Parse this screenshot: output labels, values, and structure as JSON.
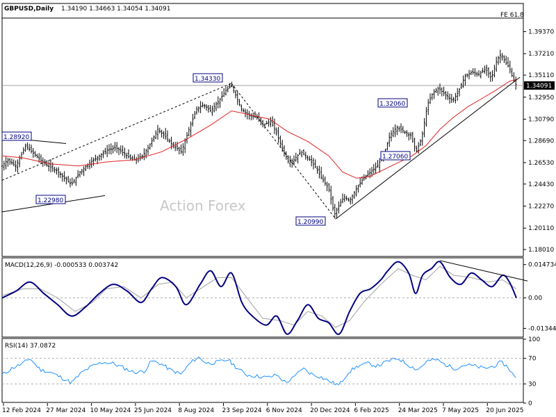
{
  "chart_data": [
    {
      "type": "candlestick",
      "panel": "price",
      "title": "GBPUSD,Daily",
      "ohlc_label": "1.34190 1.34663 1.34054 1.34091",
      "fib_label": "FE 61.8",
      "watermark": "Action Forex",
      "ylim": [
        1.174,
        1.407
      ],
      "y_ticks": [
        {
          "label": "1.39370",
          "value": 1.3937
        },
        {
          "label": "1.37210",
          "value": 1.3721
        },
        {
          "label": "1.35110",
          "value": 1.3511
        },
        {
          "label": "1.32950",
          "value": 1.3295
        },
        {
          "label": "1.30790",
          "value": 1.3079
        },
        {
          "label": "1.28690",
          "value": 1.2869
        },
        {
          "label": "1.26530",
          "value": 1.2653
        },
        {
          "label": "1.24430",
          "value": 1.2443
        },
        {
          "label": "1.22270",
          "value": 1.2227
        },
        {
          "label": "1.20110",
          "value": 1.2011
        },
        {
          "label": "1.18010",
          "value": 1.1801
        }
      ],
      "current_price": {
        "label": "1.34091",
        "value": 1.34091
      },
      "x_labels": [
        "12 Feb 2024",
        "27 Mar 2024",
        "10 May 2024",
        "25 Jun 2024",
        "8 Aug 2024",
        "23 Sep 2024",
        "6 Nov 2024",
        "20 Dec 2024",
        "6 Feb 2025",
        "24 Mar 2025",
        "7 May 2025",
        "20 Jun 2025"
      ],
      "pivot_labels": [
        {
          "label": "1.28920",
          "value": 1.2892,
          "date": "Mar 2024"
        },
        {
          "label": "1.22980",
          "value": 1.2298,
          "date": "Apr 2024"
        },
        {
          "label": "1.34330",
          "value": 1.3433,
          "date": "Sep 2024"
        },
        {
          "label": "1.20990",
          "value": 1.2099,
          "date": "Jan 2025"
        },
        {
          "label": "1.32060",
          "value": 1.3206,
          "date": "Feb 2025"
        },
        {
          "label": "1.27060",
          "value": 1.2706,
          "date": "Apr 2025"
        }
      ],
      "price_path": [
        [
          0,
          1.262
        ],
        [
          8,
          1.268
        ],
        [
          20,
          1.262
        ],
        [
          34,
          1.282
        ],
        [
          44,
          1.275
        ],
        [
          55,
          1.268
        ],
        [
          66,
          1.262
        ],
        [
          78,
          1.258
        ],
        [
          90,
          1.25
        ],
        [
          100,
          1.244
        ],
        [
          112,
          1.256
        ],
        [
          126,
          1.265
        ],
        [
          140,
          1.272
        ],
        [
          152,
          1.278
        ],
        [
          164,
          1.28
        ],
        [
          176,
          1.274
        ],
        [
          188,
          1.268
        ],
        [
          200,
          1.27
        ],
        [
          212,
          1.282
        ],
        [
          224,
          1.298
        ],
        [
          236,
          1.29
        ],
        [
          246,
          1.282
        ],
        [
          258,
          1.276
        ],
        [
          270,
          1.3
        ],
        [
          280,
          1.318
        ],
        [
          290,
          1.322
        ],
        [
          300,
          1.316
        ],
        [
          312,
          1.326
        ],
        [
          322,
          1.336
        ],
        [
          330,
          1.341
        ],
        [
          337,
          1.33
        ],
        [
          344,
          1.318
        ],
        [
          354,
          1.312
        ],
        [
          366,
          1.31
        ],
        [
          376,
          1.302
        ],
        [
          386,
          1.306
        ],
        [
          394,
          1.296
        ],
        [
          404,
          1.278
        ],
        [
          412,
          1.266
        ],
        [
          420,
          1.268
        ],
        [
          430,
          1.276
        ],
        [
          440,
          1.27
        ],
        [
          450,
          1.262
        ],
        [
          460,
          1.25
        ],
        [
          470,
          1.24
        ],
        [
          478,
          1.214
        ],
        [
          484,
          1.222
        ],
        [
          492,
          1.232
        ],
        [
          500,
          1.228
        ],
        [
          510,
          1.24
        ],
        [
          520,
          1.25
        ],
        [
          530,
          1.256
        ],
        [
          540,
          1.262
        ],
        [
          550,
          1.274
        ],
        [
          558,
          1.292
        ],
        [
          568,
          1.3
        ],
        [
          578,
          1.296
        ],
        [
          588,
          1.292
        ],
        [
          596,
          1.276
        ],
        [
          604,
          1.29
        ],
        [
          612,
          1.322
        ],
        [
          620,
          1.334
        ],
        [
          628,
          1.338
        ],
        [
          638,
          1.332
        ],
        [
          648,
          1.326
        ],
        [
          656,
          1.334
        ],
        [
          666,
          1.35
        ],
        [
          676,
          1.354
        ],
        [
          686,
          1.352
        ],
        [
          696,
          1.357
        ],
        [
          704,
          1.348
        ],
        [
          712,
          1.366
        ],
        [
          718,
          1.372
        ],
        [
          724,
          1.364
        ],
        [
          730,
          1.358
        ],
        [
          736,
          1.346
        ],
        [
          740,
          1.341
        ]
      ],
      "ma_path": [
        [
          0,
          1.272
        ],
        [
          30,
          1.27
        ],
        [
          70,
          1.264
        ],
        [
          110,
          1.262
        ],
        [
          150,
          1.266
        ],
        [
          190,
          1.268
        ],
        [
          230,
          1.276
        ],
        [
          270,
          1.29
        ],
        [
          300,
          1.302
        ],
        [
          330,
          1.316
        ],
        [
          345,
          1.314
        ],
        [
          370,
          1.31
        ],
        [
          385,
          1.308
        ],
        [
          410,
          1.296
        ],
        [
          440,
          1.286
        ],
        [
          470,
          1.272
        ],
        [
          490,
          1.256
        ],
        [
          510,
          1.25
        ],
        [
          530,
          1.252
        ],
        [
          560,
          1.262
        ],
        [
          590,
          1.272
        ],
        [
          610,
          1.282
        ],
        [
          630,
          1.298
        ],
        [
          650,
          1.31
        ],
        [
          670,
          1.32
        ],
        [
          690,
          1.328
        ],
        [
          710,
          1.336
        ],
        [
          730,
          1.345
        ],
        [
          740,
          1.347
        ]
      ],
      "trendlines": [
        {
          "from": [
            0,
            1.248
          ],
          "to": [
            330,
            1.343
          ]
        },
        {
          "from": [
            0,
            1.29
          ],
          "to": [
            92,
            1.284
          ]
        },
        {
          "from": [
            0,
            1.217
          ],
          "to": [
            148,
            1.233
          ]
        },
        {
          "from": [
            330,
            1.343
          ],
          "to": [
            480,
            1.21
          ]
        },
        {
          "from": [
            480,
            1.21
          ],
          "to": [
            745,
            1.349
          ]
        }
      ]
    },
    {
      "type": "line",
      "panel": "macd",
      "title": "MACD(12,26,9) -0.000533 0.003742",
      "ylim": [
        -0.0176,
        0.0174
      ],
      "y_ticks": [
        {
          "label": "0.014734",
          "value": 0.014734
        },
        {
          "label": "0.00",
          "value": 0.0
        },
        {
          "label": "-0.013442",
          "value": -0.013442
        }
      ],
      "series": [
        {
          "role": "macd",
          "color": "#000080"
        },
        {
          "role": "signal",
          "color": "#a0a0a0"
        }
      ],
      "macd_path": [
        [
          0,
          0.0
        ],
        [
          20,
          0.003
        ],
        [
          40,
          0.007
        ],
        [
          60,
          0.002
        ],
        [
          80,
          -0.003
        ],
        [
          100,
          -0.008
        ],
        [
          120,
          -0.004
        ],
        [
          140,
          0.002
        ],
        [
          160,
          0.006
        ],
        [
          180,
          0.003
        ],
        [
          200,
          -0.002
        ],
        [
          215,
          0.004
        ],
        [
          230,
          0.009
        ],
        [
          250,
          0.005
        ],
        [
          265,
          -0.003
        ],
        [
          285,
          0.006
        ],
        [
          300,
          0.012
        ],
        [
          315,
          0.005
        ],
        [
          330,
          0.011
        ],
        [
          345,
          -0.002
        ],
        [
          360,
          -0.008
        ],
        [
          380,
          -0.012
        ],
        [
          395,
          -0.008
        ],
        [
          410,
          -0.016
        ],
        [
          425,
          -0.01
        ],
        [
          440,
          -0.003
        ],
        [
          455,
          -0.009
        ],
        [
          470,
          -0.011
        ],
        [
          485,
          -0.016
        ],
        [
          500,
          -0.006
        ],
        [
          515,
          0.002
        ],
        [
          530,
          0.004
        ],
        [
          545,
          0.008
        ],
        [
          555,
          0.012
        ],
        [
          570,
          0.016
        ],
        [
          585,
          0.011
        ],
        [
          595,
          0.002
        ],
        [
          605,
          0.01
        ],
        [
          618,
          0.013
        ],
        [
          630,
          0.016
        ],
        [
          645,
          0.009
        ],
        [
          660,
          0.006
        ],
        [
          675,
          0.011
        ],
        [
          690,
          0.008
        ],
        [
          705,
          0.005
        ],
        [
          720,
          0.01
        ],
        [
          730,
          0.007
        ],
        [
          740,
          0.0
        ]
      ],
      "signal_path": [
        [
          0,
          0.001
        ],
        [
          30,
          0.004
        ],
        [
          55,
          0.004
        ],
        [
          80,
          0.0
        ],
        [
          105,
          -0.006
        ],
        [
          130,
          -0.002
        ],
        [
          150,
          0.004
        ],
        [
          175,
          0.005
        ],
        [
          200,
          0.0
        ],
        [
          225,
          0.006
        ],
        [
          245,
          0.007
        ],
        [
          265,
          0.0
        ],
        [
          290,
          0.005
        ],
        [
          310,
          0.009
        ],
        [
          330,
          0.009
        ],
        [
          350,
          0.001
        ],
        [
          375,
          -0.009
        ],
        [
          400,
          -0.01
        ],
        [
          420,
          -0.012
        ],
        [
          440,
          -0.006
        ],
        [
          460,
          -0.008
        ],
        [
          480,
          -0.013
        ],
        [
          500,
          -0.01
        ],
        [
          520,
          -0.002
        ],
        [
          545,
          0.006
        ],
        [
          570,
          0.013
        ],
        [
          590,
          0.01
        ],
        [
          610,
          0.008
        ],
        [
          630,
          0.014
        ],
        [
          650,
          0.01
        ],
        [
          675,
          0.009
        ],
        [
          700,
          0.007
        ],
        [
          720,
          0.008
        ],
        [
          740,
          0.004
        ]
      ],
      "trendline": {
        "from": [
          630,
          0.0165
        ],
        "to": [
          756,
          0.0075
        ]
      }
    },
    {
      "type": "line",
      "panel": "rsi",
      "title": "RSI(14) 37.0872",
      "ylim": [
        0,
        100
      ],
      "y_ticks": [
        {
          "label": "100",
          "value": 100
        },
        {
          "label": "70",
          "value": 70
        },
        {
          "label": "30",
          "value": 30
        },
        {
          "label": "0",
          "value": 0
        }
      ],
      "line_color": "#1e90ff",
      "rsi_path": [
        [
          0,
          44
        ],
        [
          15,
          55
        ],
        [
          30,
          62
        ],
        [
          40,
          70
        ],
        [
          55,
          52
        ],
        [
          70,
          48
        ],
        [
          85,
          40
        ],
        [
          100,
          32
        ],
        [
          115,
          48
        ],
        [
          130,
          58
        ],
        [
          145,
          64
        ],
        [
          160,
          62
        ],
        [
          175,
          55
        ],
        [
          190,
          48
        ],
        [
          205,
          50
        ],
        [
          215,
          66
        ],
        [
          228,
          62
        ],
        [
          242,
          52
        ],
        [
          258,
          45
        ],
        [
          270,
          62
        ],
        [
          282,
          72
        ],
        [
          295,
          62
        ],
        [
          310,
          64
        ],
        [
          325,
          68
        ],
        [
          338,
          55
        ],
        [
          352,
          44
        ],
        [
          368,
          42
        ],
        [
          382,
          40
        ],
        [
          395,
          44
        ],
        [
          408,
          32
        ],
        [
          420,
          40
        ],
        [
          432,
          55
        ],
        [
          445,
          46
        ],
        [
          460,
          40
        ],
        [
          475,
          32
        ],
        [
          485,
          28
        ],
        [
          498,
          48
        ],
        [
          512,
          58
        ],
        [
          526,
          62
        ],
        [
          540,
          58
        ],
        [
          556,
          66
        ],
        [
          570,
          70
        ],
        [
          584,
          60
        ],
        [
          598,
          52
        ],
        [
          612,
          66
        ],
        [
          625,
          68
        ],
        [
          638,
          60
        ],
        [
          652,
          54
        ],
        [
          666,
          60
        ],
        [
          680,
          58
        ],
        [
          694,
          54
        ],
        [
          708,
          58
        ],
        [
          718,
          64
        ],
        [
          728,
          56
        ],
        [
          740,
          37
        ]
      ]
    }
  ]
}
